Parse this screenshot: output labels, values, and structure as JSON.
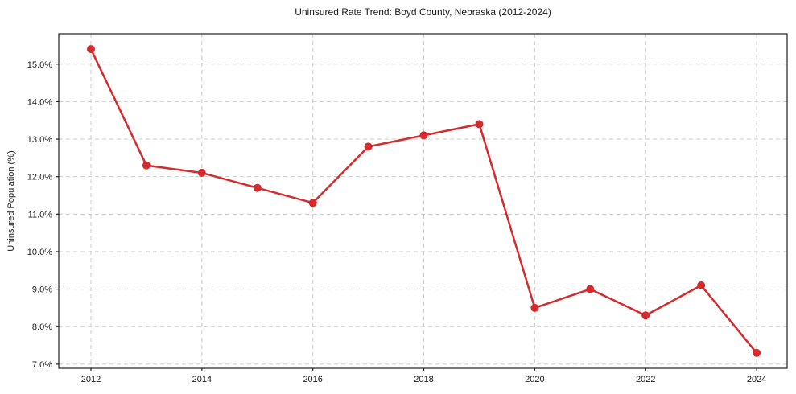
{
  "chart_data": {
    "type": "line",
    "title": "Uninsured Rate Trend: Boyd County, Nebraska (2012-2024)",
    "xlabel": "",
    "ylabel": "Uninsured Population (%)",
    "x": [
      2012,
      2013,
      2014,
      2015,
      2016,
      2017,
      2018,
      2019,
      2020,
      2021,
      2022,
      2023,
      2024
    ],
    "values": [
      15.4,
      12.3,
      12.1,
      11.7,
      11.3,
      12.8,
      13.1,
      13.4,
      8.5,
      9.0,
      8.3,
      9.1,
      7.3
    ],
    "x_ticks": [
      2012,
      2014,
      2016,
      2018,
      2020,
      2022,
      2024
    ],
    "y_ticks": [
      7.0,
      8.0,
      9.0,
      10.0,
      11.0,
      12.0,
      13.0,
      14.0,
      15.0
    ],
    "y_tick_suffix": "%",
    "y_tick_decimals": 1,
    "xlim": [
      2011.42,
      2024.55
    ],
    "ylim": [
      6.89,
      15.81
    ],
    "grid": true,
    "legend": false,
    "line_color": "#d62b2e",
    "marker": "circle",
    "marker_radius": 5,
    "line_width": 2.5,
    "grid_color": "#cccccc",
    "spine_color": "#1f1f1f",
    "text_color": "#1a1a1a",
    "background": "#ffffff"
  }
}
